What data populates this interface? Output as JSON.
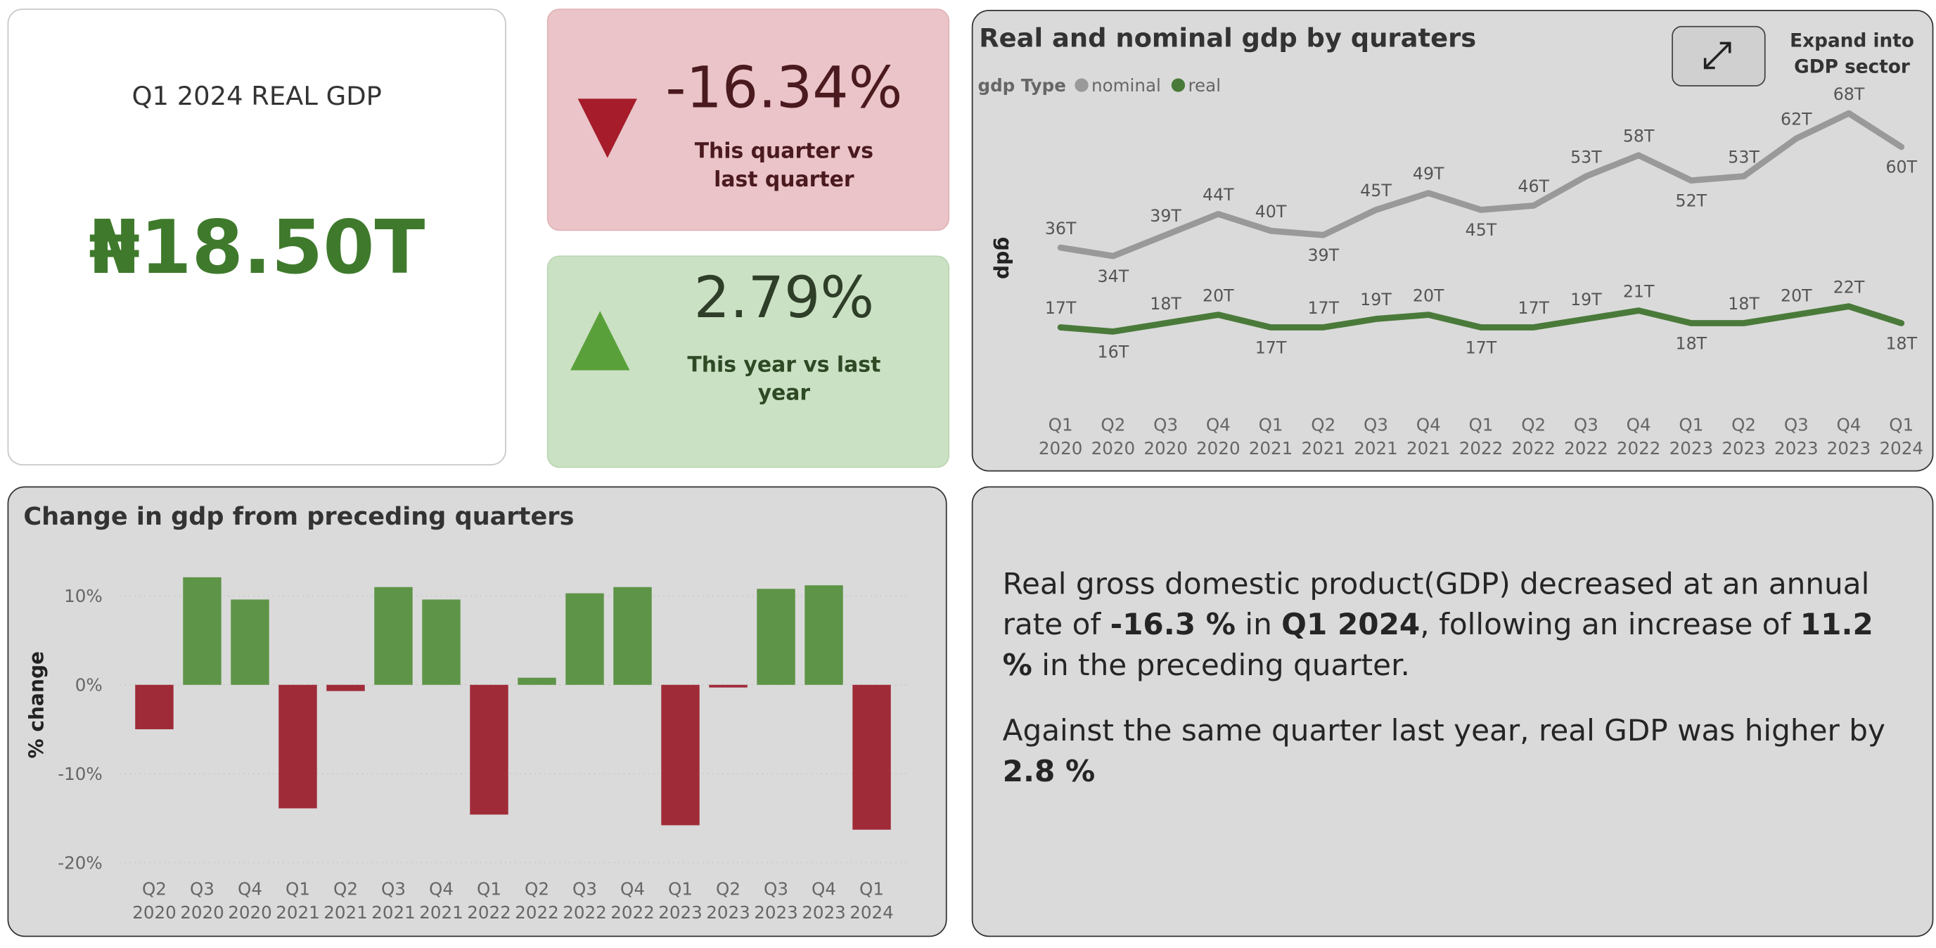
{
  "cards": [
    {
      "title": "Q1 2024 REAL GDP",
      "value": "₦18.50T"
    },
    {
      "value": "-16.34%",
      "label": "This quarter vs last quarter"
    },
    {
      "value": "2.79%",
      "label": "This year vs last year"
    }
  ],
  "button": {
    "label": "Expand into GDP sector"
  },
  "summary": {
    "paragraphs": [
      [
        {
          "text": "Real gross domestic product(GDP) decreased at an annual rate of ",
          "bold": false
        },
        {
          "text": "-16.3 %",
          "bold": true
        },
        {
          "text": " in ",
          "bold": false
        },
        {
          "text": "Q1 2024",
          "bold": true
        },
        {
          "text": ", following an increase of ",
          "bold": false
        },
        {
          "text": "11.2 %",
          "bold": true
        },
        {
          "text": " in the preceding quarter.",
          "bold": false
        }
      ],
      [
        {
          "text": "Against the same quarter last year, real GDP was higher by ",
          "bold": false
        },
        {
          "text": "2.8 %",
          "bold": true
        }
      ]
    ]
  },
  "chart_data": [
    {
      "type": "line",
      "title": "Real and nominal gdp by quraters",
      "y_label": "gdp",
      "legend_title": "gdp Type",
      "categories": [
        "Q1 2020",
        "Q2 2020",
        "Q3 2020",
        "Q4 2020",
        "Q1 2021",
        "Q2 2021",
        "Q3 2021",
        "Q4 2021",
        "Q1 2022",
        "Q2 2022",
        "Q3 2022",
        "Q4 2022",
        "Q1 2023",
        "Q2 2023",
        "Q3 2023",
        "Q4 2023",
        "Q1 2024"
      ],
      "ylim": [
        0,
        75
      ],
      "series": [
        {
          "name": "nominal",
          "color": "#999999",
          "values": [
            36,
            34,
            39,
            44,
            40,
            39,
            45,
            49,
            45,
            46,
            53,
            58,
            52,
            53,
            62,
            68,
            60
          ],
          "value_labels": [
            "36T",
            "34T",
            "39T",
            "44T",
            "40T",
            "39T",
            "45T",
            "49T",
            "45T",
            "46T",
            "53T",
            "58T",
            "52T",
            "53T",
            "62T",
            "68T",
            "60T"
          ]
        },
        {
          "name": "real",
          "color": "#4a7a3a",
          "values": [
            17,
            16,
            18,
            20,
            17,
            17,
            19,
            20,
            17,
            17,
            19,
            21,
            18,
            18,
            20,
            22,
            18
          ],
          "value_labels": [
            "17T",
            "16T",
            "18T",
            "20T",
            "17T",
            "17T",
            "19T",
            "20T",
            "17T",
            "17T",
            "19T",
            "21T",
            "18T",
            "18T",
            "20T",
            "22T",
            "18T"
          ]
        }
      ]
    },
    {
      "type": "bar",
      "title": "Change in gdp from preceding quarters",
      "y_label": "% change",
      "categories": [
        "Q2 2020",
        "Q3 2020",
        "Q4 2020",
        "Q1 2021",
        "Q2 2021",
        "Q3 2021",
        "Q4 2021",
        "Q1 2022",
        "Q2 2022",
        "Q3 2022",
        "Q4 2022",
        "Q1 2023",
        "Q2 2023",
        "Q3 2023",
        "Q4 2023",
        "Q1 2024"
      ],
      "values": [
        -5.0,
        12.1,
        9.6,
        -13.9,
        -0.7,
        11.0,
        9.6,
        -14.6,
        0.8,
        10.3,
        11.0,
        -15.8,
        -0.3,
        10.8,
        11.2,
        -16.3
      ],
      "positive_color": "#5e9447",
      "negative_color": "#a02b38",
      "ylim": [
        -21,
        14
      ],
      "yticks": [
        {
          "value": 10,
          "label": "10%"
        },
        {
          "value": 0,
          "label": "0%"
        },
        {
          "value": -10,
          "label": "-10%"
        },
        {
          "value": -20,
          "label": "-20%"
        }
      ],
      "grid": true
    }
  ]
}
